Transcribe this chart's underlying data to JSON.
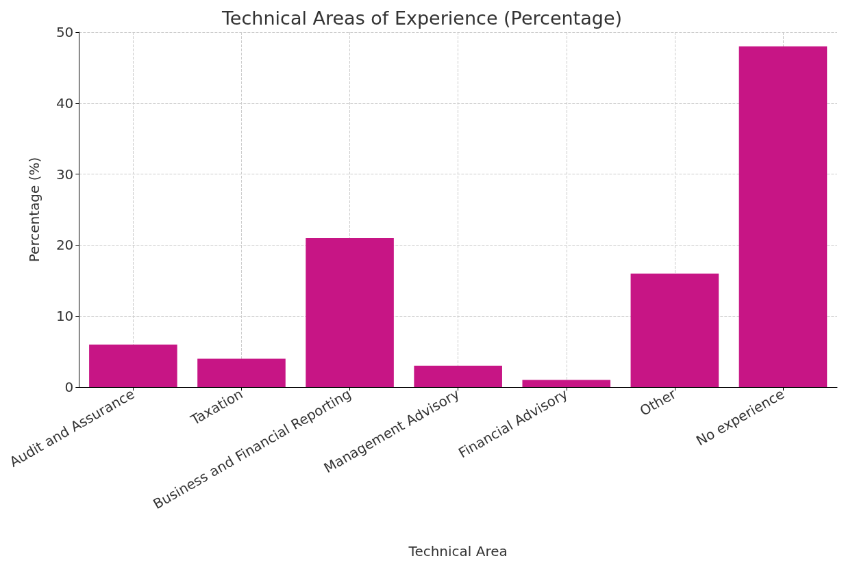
{
  "chart_data": {
    "type": "bar",
    "title": "Technical Areas of Experience (Percentage)",
    "xlabel": "Technical Area",
    "ylabel": "Percentage (%)",
    "categories": [
      "Audit and Assurance",
      "Taxation",
      "Business and Financial Reporting",
      "Management Advisory",
      "Financial Advisory",
      "Other",
      "No experience"
    ],
    "values": [
      6,
      4,
      21,
      3,
      1,
      16,
      48
    ],
    "color": "#c71585",
    "ylim": [
      0,
      50
    ],
    "yticks": [
      0,
      10,
      20,
      30,
      40,
      50
    ],
    "grid": true
  }
}
